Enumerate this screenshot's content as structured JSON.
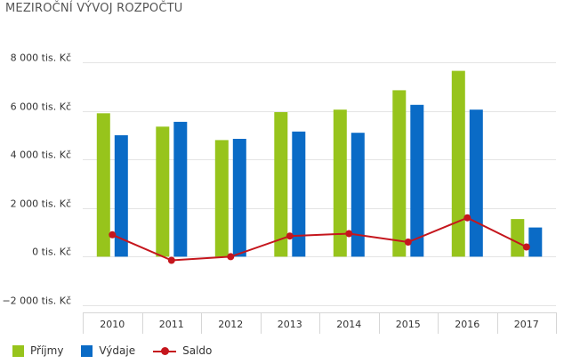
{
  "title": "MEZIROČNÍ VÝVOJ ROZPOČTU",
  "colors": {
    "prijmy": "#97c41c",
    "vydaje": "#0a6bc6",
    "saldo": "#c5161d",
    "grid": "#e4e4e4",
    "axis": "#d6d6d6"
  },
  "chart_data": {
    "type": "bar",
    "categories": [
      "2010",
      "2011",
      "2012",
      "2013",
      "2014",
      "2015",
      "2016",
      "2017"
    ],
    "series": [
      {
        "name": "Příjmy",
        "type": "bar",
        "values": [
          5900,
          5350,
          4800,
          5950,
          6050,
          6850,
          7650,
          1550
        ]
      },
      {
        "name": "Výdaje",
        "type": "bar",
        "values": [
          5000,
          5550,
          4850,
          5150,
          5100,
          6250,
          6050,
          1200
        ]
      },
      {
        "name": "Saldo",
        "type": "line",
        "values": [
          900,
          -150,
          0,
          850,
          950,
          600,
          1600,
          400
        ]
      }
    ],
    "ylim": [
      -2000,
      8000
    ],
    "yticks": [
      -2000,
      0,
      2000,
      4000,
      6000,
      8000
    ],
    "ytick_labels": [
      "−2 000 tis. Kč",
      "0 tis. Kč",
      "2 000 tis. Kč",
      "4 000 tis. Kč",
      "6 000 tis. Kč",
      "8 000 tis. Kč"
    ],
    "grid": true,
    "legend": "bottom-left"
  },
  "legend": {
    "prijmy": "Příjmy",
    "vydaje": "Výdaje",
    "saldo": "Saldo"
  }
}
